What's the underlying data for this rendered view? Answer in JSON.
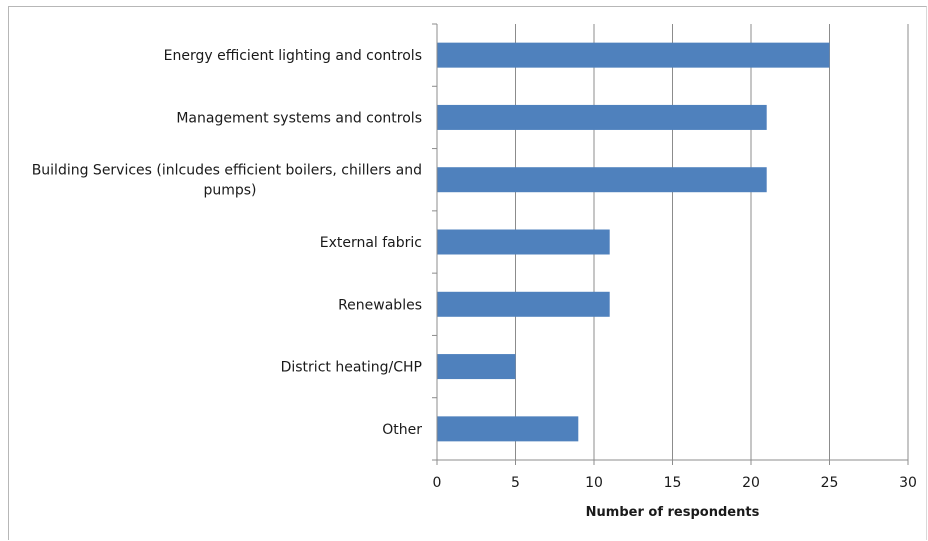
{
  "chart_data": {
    "type": "bar",
    "orientation": "horizontal",
    "categories": [
      "Energy efficient lighting and controls",
      "Management systems and controls",
      "Building Services (inlcudes efficient boilers, chillers and pumps)",
      "External fabric",
      "Renewables",
      "District heating/CHP",
      "Other"
    ],
    "category_label_lines": [
      [
        "Energy efficient lighting and controls"
      ],
      [
        "Management systems and controls"
      ],
      [
        "Building Services (inlcudes efficient boilers, chillers and",
        "pumps)"
      ],
      [
        "External fabric"
      ],
      [
        "Renewables"
      ],
      [
        "District heating/CHP"
      ],
      [
        "Other"
      ]
    ],
    "values": [
      25,
      21,
      21,
      11,
      11,
      5,
      9
    ],
    "xlabel": "Number of respondents",
    "ylabel": "",
    "xlim": [
      0,
      30
    ],
    "xticks": [
      0,
      5,
      10,
      15,
      20,
      25,
      30
    ],
    "grid": "vertical",
    "legend": "none",
    "bar_color": "#4f81bd"
  }
}
